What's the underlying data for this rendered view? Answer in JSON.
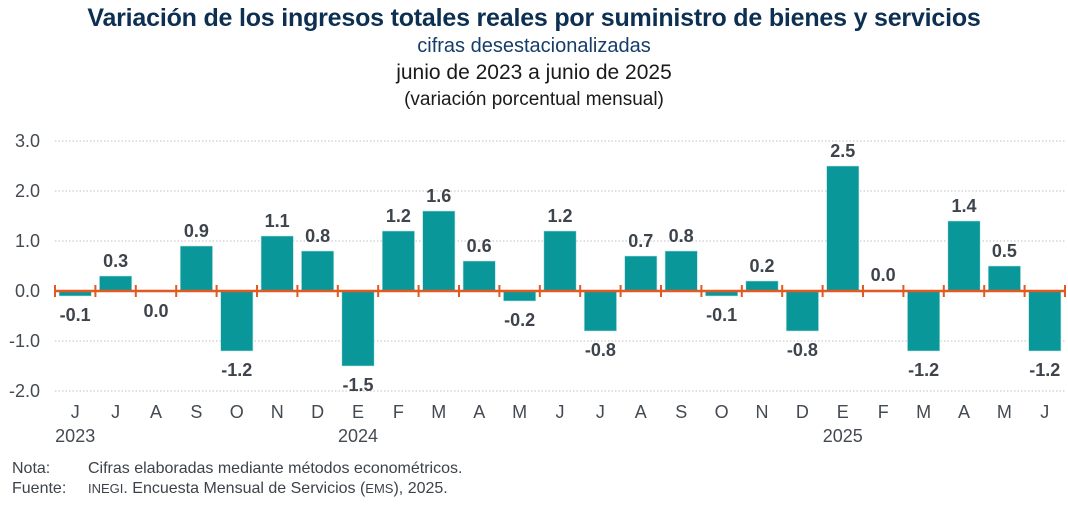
{
  "chart_data": {
    "type": "bar",
    "title": "Variación de los ingresos totales reales por suministro de bienes y servicios",
    "subtitle": "cifras desestacionalizadas",
    "period": "junio de 2023 a junio de 2025",
    "units": "(variación porcentual mensual)",
    "xlabel": "",
    "ylabel": "",
    "ylim": [
      -2.0,
      3.0
    ],
    "yticks": [
      3.0,
      2.0,
      1.0,
      0.0,
      -1.0,
      -2.0
    ],
    "ytick_labels": [
      "3.0",
      "2.0",
      "1.0",
      "0.0",
      "-1.0",
      "-2.0"
    ],
    "grid": true,
    "legend": "none",
    "categories": [
      "J",
      "J",
      "A",
      "S",
      "O",
      "N",
      "D",
      "E",
      "F",
      "M",
      "A",
      "M",
      "J",
      "J",
      "A",
      "S",
      "O",
      "N",
      "D",
      "E",
      "F",
      "M",
      "A",
      "M",
      "J"
    ],
    "years": [
      {
        "label": "2023",
        "index": 0
      },
      {
        "label": "2024",
        "index": 7
      },
      {
        "label": "2025",
        "index": 19
      }
    ],
    "values": [
      -0.1,
      0.3,
      0.0,
      0.9,
      -1.2,
      1.1,
      0.8,
      -1.5,
      1.2,
      1.6,
      0.6,
      -0.2,
      1.2,
      -0.8,
      0.7,
      0.8,
      -0.1,
      0.2,
      -0.8,
      2.5,
      0.0,
      -1.2,
      1.4,
      0.5,
      -1.2
    ],
    "value_labels": [
      "-0.1",
      "0.3",
      "0.0",
      "0.9",
      "-1.2",
      "1.1",
      "0.8",
      "-1.5",
      "1.2",
      "1.6",
      "0.6",
      "-0.2",
      "1.2",
      "-0.8",
      "0.7",
      "0.8",
      "-0.1",
      "0.2",
      "-0.8",
      "2.5",
      "0.0",
      "-1.2",
      "1.4",
      "0.5",
      "-1.2"
    ],
    "colors": {
      "bar": "#0a9799",
      "zero_line": "#e05a22",
      "grid": "#bfbfbf"
    }
  },
  "notes": {
    "nota_key": "Nota:",
    "nota_text": "Cifras elaboradas mediante métodos econométricos.",
    "fuente_key": "Fuente:",
    "fuente_org": "INEGI",
    "fuente_text_1": ". Encuesta Mensual de Servicios (",
    "fuente_abbr": "EMS",
    "fuente_text_2": "), 2025."
  }
}
